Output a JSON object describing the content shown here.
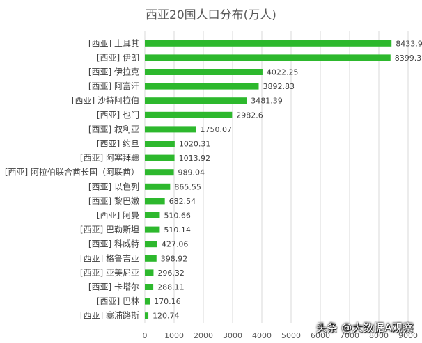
{
  "chart_data": {
    "type": "bar",
    "orientation": "horizontal",
    "title": "西亚20国人口分布(万人)",
    "categories": [
      "[西亚] 土耳其",
      "[西亚] 伊朗",
      "[西亚] 伊拉克",
      "[西亚] 阿富汗",
      "[西亚] 沙特阿拉伯",
      "[西亚] 也门",
      "[西亚] 叙利亚",
      "[西亚] 约旦",
      "[西亚] 阿塞拜疆",
      "[西亚] 阿拉伯联合酋长国（阿联酋）",
      "[西亚] 以色列",
      "[西亚] 黎巴嫩",
      "[西亚] 阿曼",
      "[西亚] 巴勒斯坦",
      "[西亚] 科威特",
      "[西亚] 格鲁吉亚",
      "[西亚] 亚美尼亚",
      "[西亚] 卡塔尔",
      "[西亚] 巴林",
      "[西亚] 塞浦路斯"
    ],
    "values": [
      8433.91,
      8399.3,
      4022.25,
      3892.83,
      3481.39,
      2982.6,
      1750.07,
      1020.31,
      1013.92,
      989.04,
      865.55,
      682.54,
      510.66,
      510.14,
      427.06,
      398.92,
      296.32,
      288.11,
      170.16,
      120.74
    ],
    "value_labels": [
      "8433.91",
      "8399.3",
      "4022.25",
      "3892.83",
      "3481.39",
      "2982.6",
      "1750.07",
      "1020.31",
      "1013.92",
      "989.04",
      "865.55",
      "682.54",
      "510.66",
      "510.14",
      "427.06",
      "398.92",
      "296.32",
      "288.11",
      "170.16",
      "120.74"
    ],
    "x_ticks": [
      0,
      1000,
      2000,
      3000,
      4000,
      5000,
      6000,
      7000,
      8000,
      9000
    ],
    "xlim": [
      0,
      9000
    ],
    "bar_color": "#2db82d",
    "grid": true,
    "legend": "none"
  },
  "watermark": "头条 @大数据A观察"
}
